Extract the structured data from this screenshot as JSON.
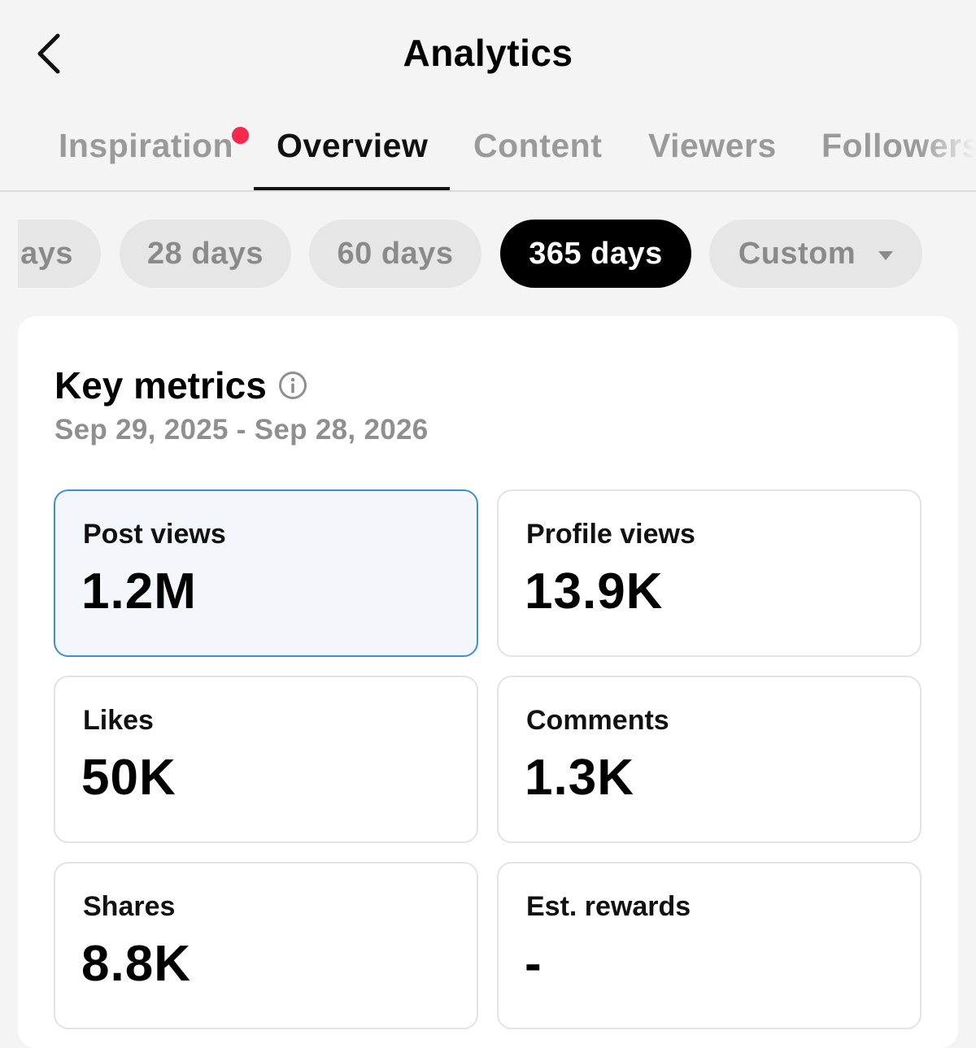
{
  "header": {
    "title": "Analytics",
    "back_icon": "chevron-left-icon"
  },
  "tabs": [
    {
      "label": "Inspiration",
      "active": false,
      "has_notification_dot": true
    },
    {
      "label": "Overview",
      "active": true
    },
    {
      "label": "Content",
      "active": false
    },
    {
      "label": "Viewers",
      "active": false
    },
    {
      "label": "Followers",
      "active": false
    }
  ],
  "periods": [
    {
      "label": "lays",
      "active": false
    },
    {
      "label": "28 days",
      "active": false
    },
    {
      "label": "60 days",
      "active": false
    },
    {
      "label": "365 days",
      "active": true
    },
    {
      "label": "Custom",
      "active": false,
      "dropdown": true
    }
  ],
  "key_metrics": {
    "title": "Key metrics",
    "info_icon": "info-icon",
    "date_range": "Sep 29, 2025 - Sep 28, 2026",
    "items": [
      {
        "label": "Post views",
        "value": "1.2M",
        "selected": true
      },
      {
        "label": "Profile views",
        "value": "13.9K",
        "selected": false
      },
      {
        "label": "Likes",
        "value": "50K",
        "selected": false
      },
      {
        "label": "Comments",
        "value": "1.3K",
        "selected": false
      },
      {
        "label": "Shares",
        "value": "8.8K",
        "selected": false
      },
      {
        "label": "Est. rewards",
        "value": "-",
        "selected": false
      }
    ]
  },
  "colors": {
    "background": "#f4f4f4",
    "accent_selected_border": "#3d8ed8",
    "notification_dot": "#f5284e",
    "active_chip": "#000000"
  }
}
